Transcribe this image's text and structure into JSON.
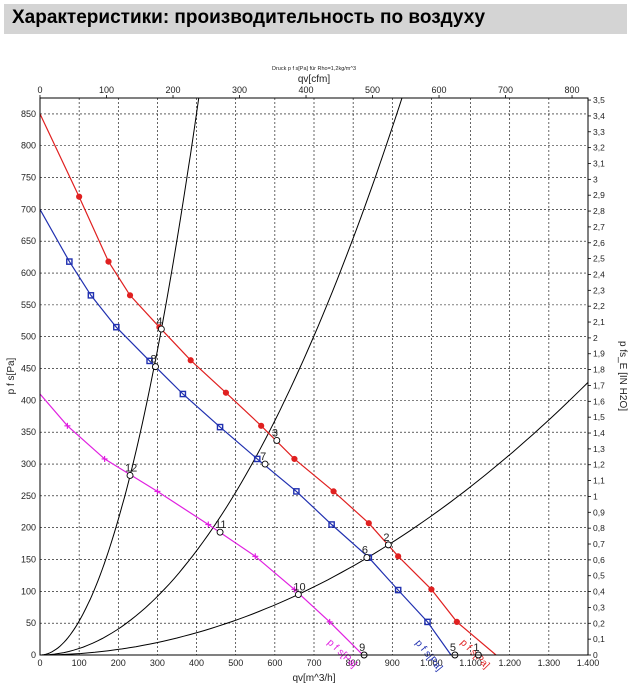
{
  "header": {
    "title": "Характеристики: производительность по воздуху"
  },
  "chart_data": {
    "type": "line",
    "title": "Druck p f s[Pa] für Rho=1,2kg/m^3",
    "xlabel": "qv[m^3/h]",
    "ylabel": "p f s[Pa]",
    "x2label": "qv[cfm]",
    "y2label": "p fs_E [IN H2O]",
    "xlim": [
      0,
      1400
    ],
    "ylim": [
      0,
      875
    ],
    "x2lim": [
      0,
      824
    ],
    "y2lim": [
      0,
      3.513
    ],
    "grid": true,
    "x_ticks": [
      {
        "v": 0,
        "label": "0"
      },
      {
        "v": 100,
        "label": "100"
      },
      {
        "v": 200,
        "label": "200"
      },
      {
        "v": 300,
        "label": "300"
      },
      {
        "v": 400,
        "label": "400"
      },
      {
        "v": 500,
        "label": "500"
      },
      {
        "v": 600,
        "label": "600"
      },
      {
        "v": 700,
        "label": "700"
      },
      {
        "v": 800,
        "label": "800"
      },
      {
        "v": 900,
        "label": "900"
      },
      {
        "v": 1000,
        "label": "1.000"
      },
      {
        "v": 1100,
        "label": "1.100"
      },
      {
        "v": 1200,
        "label": "1.200"
      },
      {
        "v": 1300,
        "label": "1.300"
      },
      {
        "v": 1400,
        "label": "1.400"
      }
    ],
    "y_ticks": [
      {
        "v": 0,
        "label": "0"
      },
      {
        "v": 50,
        "label": "50"
      },
      {
        "v": 100,
        "label": "100"
      },
      {
        "v": 150,
        "label": "150"
      },
      {
        "v": 200,
        "label": "200"
      },
      {
        "v": 250,
        "label": "250"
      },
      {
        "v": 300,
        "label": "300"
      },
      {
        "v": 350,
        "label": "350"
      },
      {
        "v": 400,
        "label": "400"
      },
      {
        "v": 450,
        "label": "450"
      },
      {
        "v": 500,
        "label": "500"
      },
      {
        "v": 550,
        "label": "550"
      },
      {
        "v": 600,
        "label": "600"
      },
      {
        "v": 650,
        "label": "650"
      },
      {
        "v": 700,
        "label": "700"
      },
      {
        "v": 750,
        "label": "750"
      },
      {
        "v": 800,
        "label": "800"
      },
      {
        "v": 850,
        "label": "850"
      }
    ],
    "x2_ticks": [
      {
        "v": 0,
        "label": "0"
      },
      {
        "v": 100,
        "label": "100"
      },
      {
        "v": 200,
        "label": "200"
      },
      {
        "v": 300,
        "label": "300"
      },
      {
        "v": 400,
        "label": "400"
      },
      {
        "v": 500,
        "label": "500"
      },
      {
        "v": 600,
        "label": "600"
      },
      {
        "v": 700,
        "label": "700"
      },
      {
        "v": 800,
        "label": "800"
      }
    ],
    "y2_ticks": [
      {
        "v": 0,
        "label": "0"
      },
      {
        "v": 0.1,
        "label": "0,1"
      },
      {
        "v": 0.2,
        "label": "0,2"
      },
      {
        "v": 0.3,
        "label": "0,3"
      },
      {
        "v": 0.4,
        "label": "0,4"
      },
      {
        "v": 0.5,
        "label": "0,5"
      },
      {
        "v": 0.6,
        "label": "0,6"
      },
      {
        "v": 0.7,
        "label": "0,7"
      },
      {
        "v": 0.8,
        "label": "0,8"
      },
      {
        "v": 0.9,
        "label": "0,9"
      },
      {
        "v": 1.0,
        "label": "1"
      },
      {
        "v": 1.1,
        "label": "1,1"
      },
      {
        "v": 1.2,
        "label": "1,2"
      },
      {
        "v": 1.3,
        "label": "1,3"
      },
      {
        "v": 1.4,
        "label": "1,4"
      },
      {
        "v": 1.5,
        "label": "1,5"
      },
      {
        "v": 1.6,
        "label": "1,6"
      },
      {
        "v": 1.7,
        "label": "1,7"
      },
      {
        "v": 1.8,
        "label": "1,8"
      },
      {
        "v": 1.9,
        "label": "1,9"
      },
      {
        "v": 2.0,
        "label": "2"
      },
      {
        "v": 2.1,
        "label": "2,1"
      },
      {
        "v": 2.2,
        "label": "2,2"
      },
      {
        "v": 2.3,
        "label": "2,3"
      },
      {
        "v": 2.4,
        "label": "2,4"
      },
      {
        "v": 2.5,
        "label": "2,5"
      },
      {
        "v": 2.6,
        "label": "2,6"
      },
      {
        "v": 2.7,
        "label": "2,7"
      },
      {
        "v": 2.8,
        "label": "2,8"
      },
      {
        "v": 2.9,
        "label": "2,9"
      },
      {
        "v": 3.0,
        "label": "3"
      },
      {
        "v": 3.1,
        "label": "3,1"
      },
      {
        "v": 3.2,
        "label": "3,2"
      },
      {
        "v": 3.3,
        "label": "3,3"
      },
      {
        "v": 3.4,
        "label": "3,4"
      },
      {
        "v": 3.5,
        "label": "3,5"
      }
    ],
    "series": [
      {
        "name": "p f s[Pa]",
        "color": "#e02020",
        "marker": "circle",
        "points": [
          [
            0,
            850
          ],
          [
            100,
            720
          ],
          [
            175,
            618
          ],
          [
            230,
            565
          ],
          [
            305,
            515
          ],
          [
            385,
            463
          ],
          [
            475,
            412
          ],
          [
            565,
            360
          ],
          [
            650,
            308
          ],
          [
            750,
            257
          ],
          [
            840,
            207
          ],
          [
            915,
            155
          ],
          [
            1000,
            103
          ],
          [
            1065,
            52
          ],
          [
            1165,
            0
          ]
        ]
      },
      {
        "name": "p f s[Pa]",
        "color": "#2030b0",
        "marker": "square",
        "points": [
          [
            0,
            700
          ],
          [
            75,
            618
          ],
          [
            130,
            565
          ],
          [
            195,
            515
          ],
          [
            280,
            462
          ],
          [
            365,
            410
          ],
          [
            460,
            358
          ],
          [
            555,
            308
          ],
          [
            655,
            257
          ],
          [
            745,
            205
          ],
          [
            840,
            153
          ],
          [
            915,
            102
          ],
          [
            990,
            52
          ],
          [
            1050,
            0
          ]
        ]
      },
      {
        "name": "p f s[Pa]",
        "color": "#e020e0",
        "marker": "plus",
        "points": [
          [
            0,
            410
          ],
          [
            70,
            360
          ],
          [
            165,
            308
          ],
          [
            300,
            257
          ],
          [
            430,
            205
          ],
          [
            550,
            155
          ],
          [
            650,
            103
          ],
          [
            740,
            52
          ],
          [
            825,
            0
          ]
        ]
      }
    ],
    "system_curves": [
      {
        "color": "#000000",
        "k": 0.005322,
        "xmax": 410
      },
      {
        "color": "#000000",
        "k": 0.001023,
        "xmax": 980
      },
      {
        "color": "#000000",
        "k": 0.0002185,
        "xmax": 1400
      }
    ],
    "operating_points": [
      {
        "label": "1",
        "x": 1120,
        "y": 0
      },
      {
        "label": "2",
        "x": 890,
        "y": 173
      },
      {
        "label": "3",
        "x": 605,
        "y": 337
      },
      {
        "label": "4",
        "x": 310,
        "y": 512
      },
      {
        "label": "5",
        "x": 1060,
        "y": 0
      },
      {
        "label": "6",
        "x": 835,
        "y": 153
      },
      {
        "label": "7",
        "x": 575,
        "y": 300
      },
      {
        "label": "8",
        "x": 295,
        "y": 453
      },
      {
        "label": "9",
        "x": 828,
        "y": 0
      },
      {
        "label": "10",
        "x": 660,
        "y": 95
      },
      {
        "label": "11",
        "x": 460,
        "y": 193
      },
      {
        "label": "12",
        "x": 230,
        "y": 282
      }
    ]
  }
}
